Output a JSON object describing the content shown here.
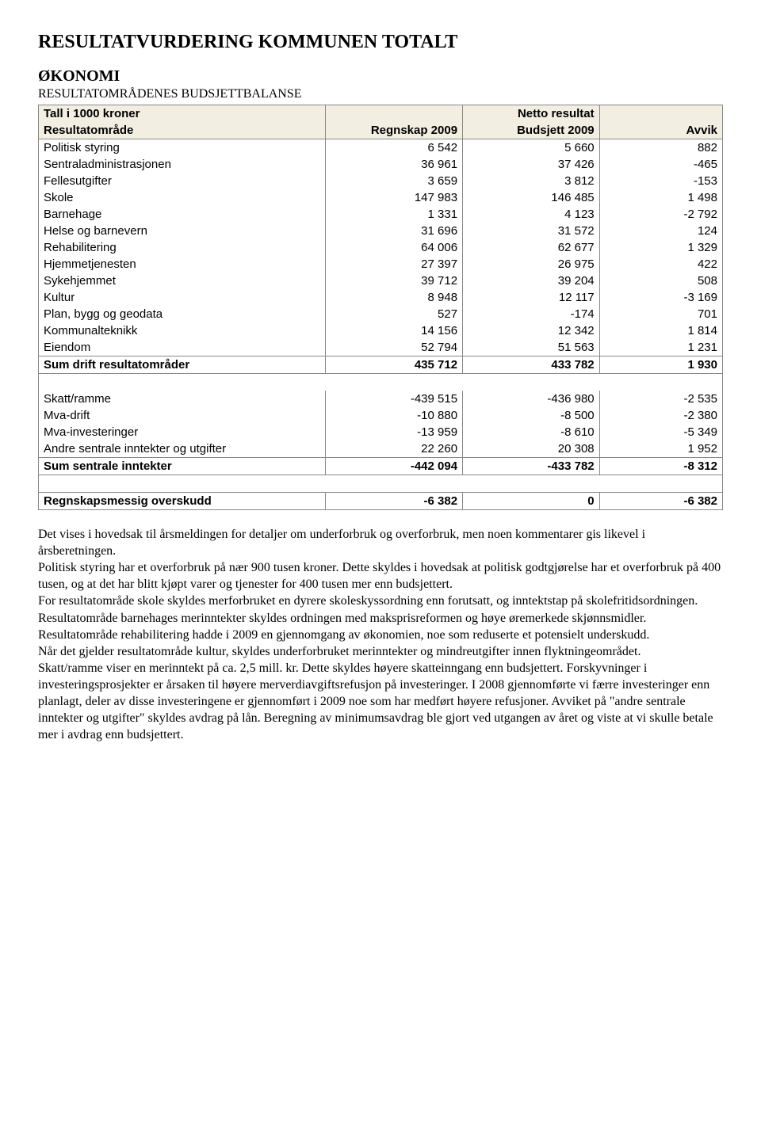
{
  "title": "RESULTATVURDERING KOMMUNEN TOTALT",
  "section_title": "ØKONOMI",
  "sub_title": "RESULTATOMRÅDENES BUDSJETTBALANSE",
  "table": {
    "header1": {
      "c1": "Tall i 1000 kroner",
      "c2": "",
      "c3": "Netto resultat",
      "c4": ""
    },
    "header2": {
      "c1": "Resultatområde",
      "c2": "Regnskap 2009",
      "c3": "Budsjett 2009",
      "c4": "Avvik"
    },
    "rows1": [
      {
        "label": "Politisk styring",
        "v1": "6 542",
        "v2": "5 660",
        "v3": "882"
      },
      {
        "label": "Sentraladministrasjonen",
        "v1": "36 961",
        "v2": "37 426",
        "v3": "-465"
      },
      {
        "label": "Fellesutgifter",
        "v1": "3 659",
        "v2": "3 812",
        "v3": "-153"
      },
      {
        "label": "Skole",
        "v1": "147 983",
        "v2": "146 485",
        "v3": "1 498"
      },
      {
        "label": "Barnehage",
        "v1": "1 331",
        "v2": "4 123",
        "v3": "-2 792"
      },
      {
        "label": "Helse og barnevern",
        "v1": "31 696",
        "v2": "31 572",
        "v3": "124"
      },
      {
        "label": "Rehabilitering",
        "v1": "64 006",
        "v2": "62 677",
        "v3": "1 329"
      },
      {
        "label": "Hjemmetjenesten",
        "v1": "27 397",
        "v2": "26 975",
        "v3": "422"
      },
      {
        "label": "Sykehjemmet",
        "v1": "39 712",
        "v2": "39 204",
        "v3": "508"
      },
      {
        "label": "Kultur",
        "v1": "8 948",
        "v2": "12 117",
        "v3": "-3 169"
      },
      {
        "label": "Plan, bygg og geodata",
        "v1": "527",
        "v2": "-174",
        "v3": "701"
      },
      {
        "label": "Kommunalteknikk",
        "v1": "14 156",
        "v2": "12 342",
        "v3": "1 814"
      },
      {
        "label": "Eiendom",
        "v1": "52 794",
        "v2": "51 563",
        "v3": "1 231"
      }
    ],
    "sum1": {
      "label": "Sum drift resultatområder",
      "v1": "435 712",
      "v2": "433 782",
      "v3": "1 930"
    },
    "rows2": [
      {
        "label": "Skatt/ramme",
        "v1": "-439 515",
        "v2": "-436 980",
        "v3": "-2 535"
      },
      {
        "label": "Mva-drift",
        "v1": "-10 880",
        "v2": "-8 500",
        "v3": "-2 380"
      },
      {
        "label": "Mva-investeringer",
        "v1": "-13 959",
        "v2": "-8 610",
        "v3": "-5 349"
      },
      {
        "label": "Andre sentrale inntekter og utgifter",
        "v1": "22 260",
        "v2": "20 308",
        "v3": "1 952"
      }
    ],
    "sum2": {
      "label": "Sum sentrale inntekter",
      "v1": "-442 094",
      "v2": "-433 782",
      "v3": "-8 312"
    },
    "final": {
      "label": "Regnskapsmessig overskudd",
      "v1": "-6 382",
      "v2": "0",
      "v3": "-6 382"
    }
  },
  "paragraphs": [
    "Det vises i hovedsak til årsmeldingen for detaljer om underforbruk og overforbruk, men noen kommentarer gis likevel i årsberetningen.",
    "Politisk styring har et overforbruk på nær 900 tusen kroner. Dette skyldes i hovedsak at politisk godtgjørelse har et overforbruk på 400 tusen, og at det har blitt kjøpt varer og tjenester for 400 tusen mer enn budsjettert.",
    "For resultatområde skole skyldes merforbruket en dyrere skoleskyssordning enn forutsatt, og inntektstap på skolefritidsordningen.",
    "Resultatområde barnehages merinntekter skyldes ordningen med maksprisreformen og høye øremerkede skjønnsmidler.",
    "Resultatområde rehabilitering hadde i 2009 en gjennomgang av økonomien, noe som reduserte et potensielt underskudd.",
    "Når det gjelder resultatområde kultur, skyldes underforbruket merinntekter og mindreutgifter innen flyktningeområdet.",
    "Skatt/ramme viser en merinntekt på ca. 2,5 mill. kr. Dette skyldes høyere skatteinngang enn budsjettert. Forskyvninger i investeringsprosjekter er årsaken til høyere merverdiavgiftsrefusjon på investeringer.  I 2008 gjennomførte vi færre investeringer enn planlagt, deler av disse investeringene er gjennomført i 2009 noe som har medført høyere refusjoner.  Avviket på \"andre sentrale inntekter og utgifter\" skyldes avdrag på lån. Beregning av minimumsavdrag ble gjort ved utgangen av året og viste at vi skulle betale mer i avdrag enn budsjettert."
  ]
}
